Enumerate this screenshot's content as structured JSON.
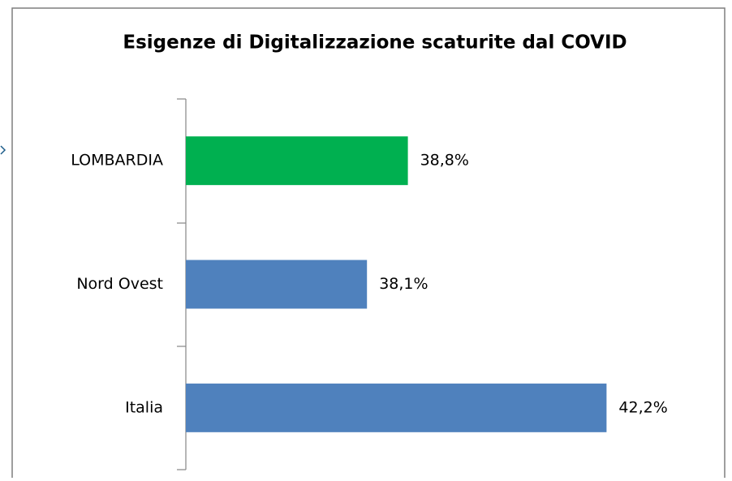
{
  "chart_data": {
    "type": "bar",
    "orientation": "horizontal",
    "title": "Esigenze di Digitalizzazione scaturite dal COVID",
    "categories": [
      "LOMBARDIA",
      "Nord Ovest",
      "Italia"
    ],
    "values": [
      38.8,
      38.1,
      42.2
    ],
    "value_labels": [
      "38,8%",
      "38,1%",
      "42,2%"
    ],
    "colors": [
      "#00b050",
      "#4f81bd",
      "#4f81bd"
    ],
    "xlim": [
      35,
      44
    ]
  }
}
